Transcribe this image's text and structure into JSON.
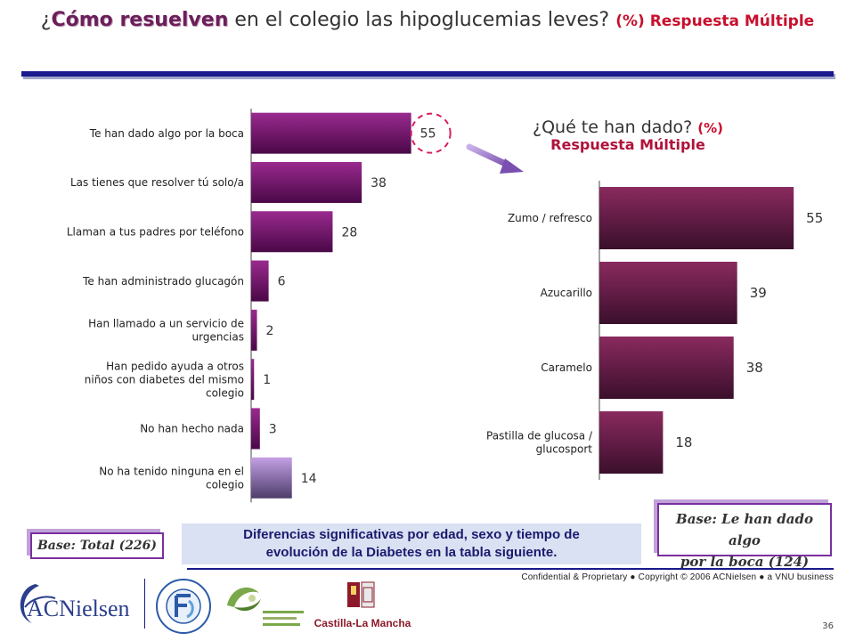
{
  "title": {
    "part1": "¿",
    "part2": "Cómo resuelven",
    "part3": " en el colegio las hipoglucemias leves? ",
    "part4": "(%) Respuesta Múltiple"
  },
  "subtitle": {
    "question": "¿Qué te han dado? ",
    "pct": "(%)",
    "respuesta": "Respuesta Múltiple"
  },
  "chart_data": [
    {
      "type": "bar",
      "orientation": "horizontal",
      "categories": [
        "Te han dado algo por la boca",
        "Las tienes que resolver tú solo/a",
        "Llaman a tus padres por teléfono",
        "Te han administrado glucagón",
        "Han llamado a un servicio de urgencias",
        "Han pedido ayuda a otros niños con diabetes del mismo colegio",
        "No han hecho nada",
        "No ha tenido ninguna en el colegio"
      ],
      "category_lines": [
        [
          "Te han dado algo por la boca"
        ],
        [
          "Las tienes que resolver tú solo/a"
        ],
        [
          "Llaman a tus padres por teléfono"
        ],
        [
          "Te han administrado glucagón"
        ],
        [
          "Han llamado a un servicio de",
          "urgencias"
        ],
        [
          "Han pedido ayuda a otros",
          "niños con diabetes del mismo",
          "colegio"
        ],
        [
          "No han hecho nada"
        ],
        [
          "No ha tenido ninguna en el",
          "colegio"
        ]
      ],
      "values": [
        55,
        38,
        28,
        6,
        2,
        1,
        3,
        14
      ],
      "highlight_index": 7,
      "circled_index": 0,
      "xlim": [
        0,
        60
      ],
      "colors": {
        "main": "#5c0a57",
        "main_light": "#9a2a8f",
        "highlight": "#b08ad0",
        "highlight_dark": "#4a3a6a"
      }
    },
    {
      "type": "bar",
      "orientation": "horizontal",
      "categories": [
        "Zumo / refresco",
        "Azucarillo",
        "Caramelo",
        "Pastilla de glucosa / glucosport"
      ],
      "category_lines": [
        [
          "Zumo / refresco"
        ],
        [
          "Azucarillo"
        ],
        [
          "Caramelo"
        ],
        [
          "Pastilla de glucosa /",
          "glucosport"
        ]
      ],
      "values": [
        55,
        39,
        38,
        18
      ],
      "xlim": [
        0,
        60
      ],
      "colors": {
        "main": "#3f1030",
        "main_light": "#8a2a5e"
      }
    }
  ],
  "note": {
    "line1": "Diferencias significativas por edad, sexo y tiempo de",
    "line2": "evolución de la Diabetes en la tabla siguiente."
  },
  "base_left": "Base: Total (226)",
  "base_right": {
    "line1": "Base: Le han dado algo",
    "line2": "por la boca (124)"
  },
  "copyright": "Confidential & Proprietary ● Copyright © 2006 ACNielsen ● a VNU business",
  "page_number": "36",
  "logos": {
    "acnielsen": "ACNielsen",
    "fundacion_diabetes": "FUNDACIÓN PARA LA DIABETES",
    "fundacion_cm": "FUNDACIÓN DE CASTILLA-LA MANCHA para la DIABETES",
    "castilla": "Castilla-La Mancha"
  },
  "icons": {
    "arrow": "diagonal-arrow-icon",
    "circle": "dashed-circle-highlight"
  }
}
